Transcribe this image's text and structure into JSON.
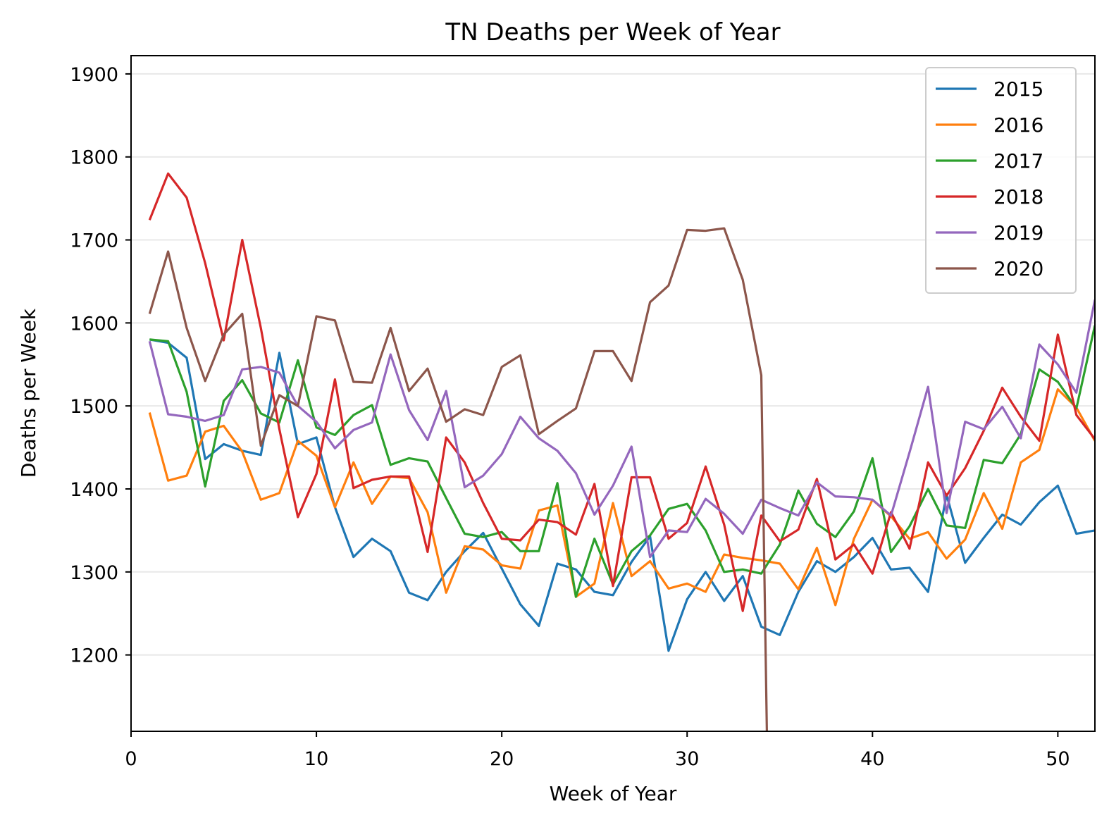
{
  "chart_data": {
    "type": "line",
    "title": "TN Deaths per Week of Year",
    "xlabel": "Week of Year",
    "ylabel": "Deaths per Week",
    "xlim": [
      0,
      52
    ],
    "ylim": [
      1108,
      1922
    ],
    "xticks": [
      0,
      10,
      20,
      30,
      40,
      50
    ],
    "yticks": [
      1200,
      1300,
      1400,
      1500,
      1600,
      1700,
      1800,
      1900
    ],
    "grid": "horizontal",
    "legend_position": "top-right",
    "series": [
      {
        "name": "2015",
        "color": "#1f77b4",
        "x": [
          1,
          2,
          3,
          4,
          5,
          6,
          7,
          8,
          9,
          10,
          11,
          12,
          13,
          14,
          15,
          16,
          17,
          18,
          19,
          20,
          21,
          22,
          23,
          24,
          25,
          26,
          27,
          28,
          29,
          30,
          31,
          32,
          33,
          34,
          35,
          36,
          37,
          38,
          39,
          40,
          41,
          42,
          43,
          44,
          45,
          46,
          47,
          48,
          49,
          50,
          51,
          52
        ],
        "values": [
          1580,
          1576,
          1558,
          1436,
          1454,
          1446,
          1441,
          1564,
          1454,
          1462,
          1378,
          1318,
          1340,
          1325,
          1275,
          1266,
          1300,
          1325,
          1347,
          1304,
          1261,
          1235,
          1310,
          1303,
          1276,
          1272,
          1312,
          1343,
          1205,
          1267,
          1300,
          1265,
          1295,
          1234,
          1224,
          1276,
          1313,
          1300,
          1318,
          1341,
          1303,
          1305,
          1276,
          1393,
          1311,
          1341,
          1369,
          1357,
          1384,
          1404,
          1346,
          1350
        ]
      },
      {
        "name": "2016",
        "color": "#ff7f0e",
        "x": [
          1,
          2,
          3,
          4,
          5,
          6,
          7,
          8,
          9,
          10,
          11,
          12,
          13,
          14,
          15,
          16,
          17,
          18,
          19,
          20,
          21,
          22,
          23,
          24,
          25,
          26,
          27,
          28,
          29,
          30,
          31,
          32,
          33,
          34,
          35,
          36,
          37,
          38,
          39,
          40,
          41,
          42,
          43,
          44,
          45,
          46,
          47,
          48,
          49,
          50,
          51,
          52
        ],
        "values": [
          1492,
          1410,
          1416,
          1469,
          1476,
          1445,
          1387,
          1395,
          1458,
          1440,
          1378,
          1432,
          1382,
          1415,
          1413,
          1372,
          1275,
          1331,
          1327,
          1308,
          1304,
          1374,
          1380,
          1270,
          1286,
          1383,
          1295,
          1313,
          1280,
          1286,
          1276,
          1321,
          1317,
          1314,
          1310,
          1279,
          1329,
          1260,
          1340,
          1387,
          1367,
          1340,
          1348,
          1316,
          1339,
          1395,
          1352,
          1432,
          1447,
          1520,
          1498,
          1458
        ]
      },
      {
        "name": "2017",
        "color": "#2ca02c",
        "x": [
          1,
          2,
          3,
          4,
          5,
          6,
          7,
          8,
          9,
          10,
          11,
          12,
          13,
          14,
          15,
          16,
          17,
          18,
          19,
          20,
          21,
          22,
          23,
          24,
          25,
          26,
          27,
          28,
          29,
          30,
          31,
          32,
          33,
          34,
          35,
          36,
          37,
          38,
          39,
          40,
          41,
          42,
          43,
          44,
          45,
          46,
          47,
          48,
          49,
          50,
          51,
          52
        ],
        "values": [
          1580,
          1578,
          1517,
          1403,
          1506,
          1531,
          1491,
          1480,
          1555,
          1474,
          1465,
          1489,
          1501,
          1429,
          1437,
          1433,
          1389,
          1346,
          1342,
          1348,
          1325,
          1325,
          1407,
          1270,
          1340,
          1285,
          1325,
          1344,
          1376,
          1382,
          1350,
          1300,
          1303,
          1298,
          1333,
          1398,
          1358,
          1342,
          1373,
          1437,
          1324,
          1355,
          1400,
          1356,
          1353,
          1435,
          1431,
          1466,
          1544,
          1529,
          1497,
          1597
        ]
      },
      {
        "name": "2018",
        "color": "#d62728",
        "x": [
          1,
          2,
          3,
          4,
          5,
          6,
          7,
          8,
          9,
          10,
          11,
          12,
          13,
          14,
          15,
          16,
          17,
          18,
          19,
          20,
          21,
          22,
          23,
          24,
          25,
          26,
          27,
          28,
          29,
          30,
          31,
          32,
          33,
          34,
          35,
          36,
          37,
          38,
          39,
          40,
          41,
          42,
          43,
          44,
          45,
          46,
          47,
          48,
          49,
          50,
          51,
          52
        ],
        "values": [
          1724,
          1780,
          1751,
          1672,
          1579,
          1700,
          1594,
          1472,
          1366,
          1418,
          1532,
          1401,
          1411,
          1415,
          1415,
          1324,
          1462,
          1432,
          1383,
          1340,
          1338,
          1363,
          1360,
          1345,
          1406,
          1283,
          1414,
          1414,
          1340,
          1359,
          1427,
          1357,
          1253,
          1368,
          1337,
          1351,
          1412,
          1315,
          1333,
          1298,
          1372,
          1328,
          1432,
          1392,
          1425,
          1470,
          1522,
          1487,
          1458,
          1586,
          1489,
          1460
        ]
      },
      {
        "name": "2019",
        "color": "#9467bd",
        "x": [
          1,
          2,
          3,
          4,
          5,
          6,
          7,
          8,
          9,
          10,
          11,
          12,
          13,
          14,
          15,
          16,
          17,
          18,
          19,
          20,
          21,
          22,
          23,
          24,
          25,
          26,
          27,
          28,
          29,
          30,
          31,
          32,
          33,
          34,
          35,
          36,
          37,
          38,
          39,
          40,
          41,
          42,
          43,
          44,
          45,
          46,
          47,
          48,
          49,
          50,
          51,
          52
        ],
        "values": [
          1578,
          1490,
          1487,
          1482,
          1489,
          1544,
          1547,
          1540,
          1500,
          1481,
          1449,
          1471,
          1480,
          1562,
          1495,
          1459,
          1518,
          1402,
          1416,
          1442,
          1487,
          1461,
          1446,
          1419,
          1369,
          1404,
          1451,
          1318,
          1350,
          1348,
          1388,
          1370,
          1346,
          1387,
          1377,
          1368,
          1408,
          1391,
          1390,
          1387,
          1368,
          1444,
          1523,
          1371,
          1481,
          1472,
          1499,
          1461,
          1574,
          1550,
          1516,
          1628
        ]
      },
      {
        "name": "2020",
        "color": "#8c564b",
        "x": [
          1,
          2,
          3,
          4,
          5,
          6,
          7,
          8,
          9,
          10,
          11,
          12,
          13,
          14,
          15,
          16,
          17,
          18,
          19,
          20,
          21,
          22,
          23,
          24,
          25,
          26,
          27,
          28,
          29,
          30,
          31,
          32,
          33,
          34,
          34.3
        ],
        "values": [
          1611,
          1686,
          1594,
          1530,
          1586,
          1611,
          1452,
          1513,
          1500,
          1608,
          1603,
          1529,
          1528,
          1594,
          1518,
          1545,
          1481,
          1496,
          1489,
          1547,
          1561,
          1466,
          1482,
          1497,
          1566,
          1566,
          1530,
          1625,
          1645,
          1712,
          1711,
          1714,
          1652,
          1537,
          1108
        ]
      }
    ]
  }
}
